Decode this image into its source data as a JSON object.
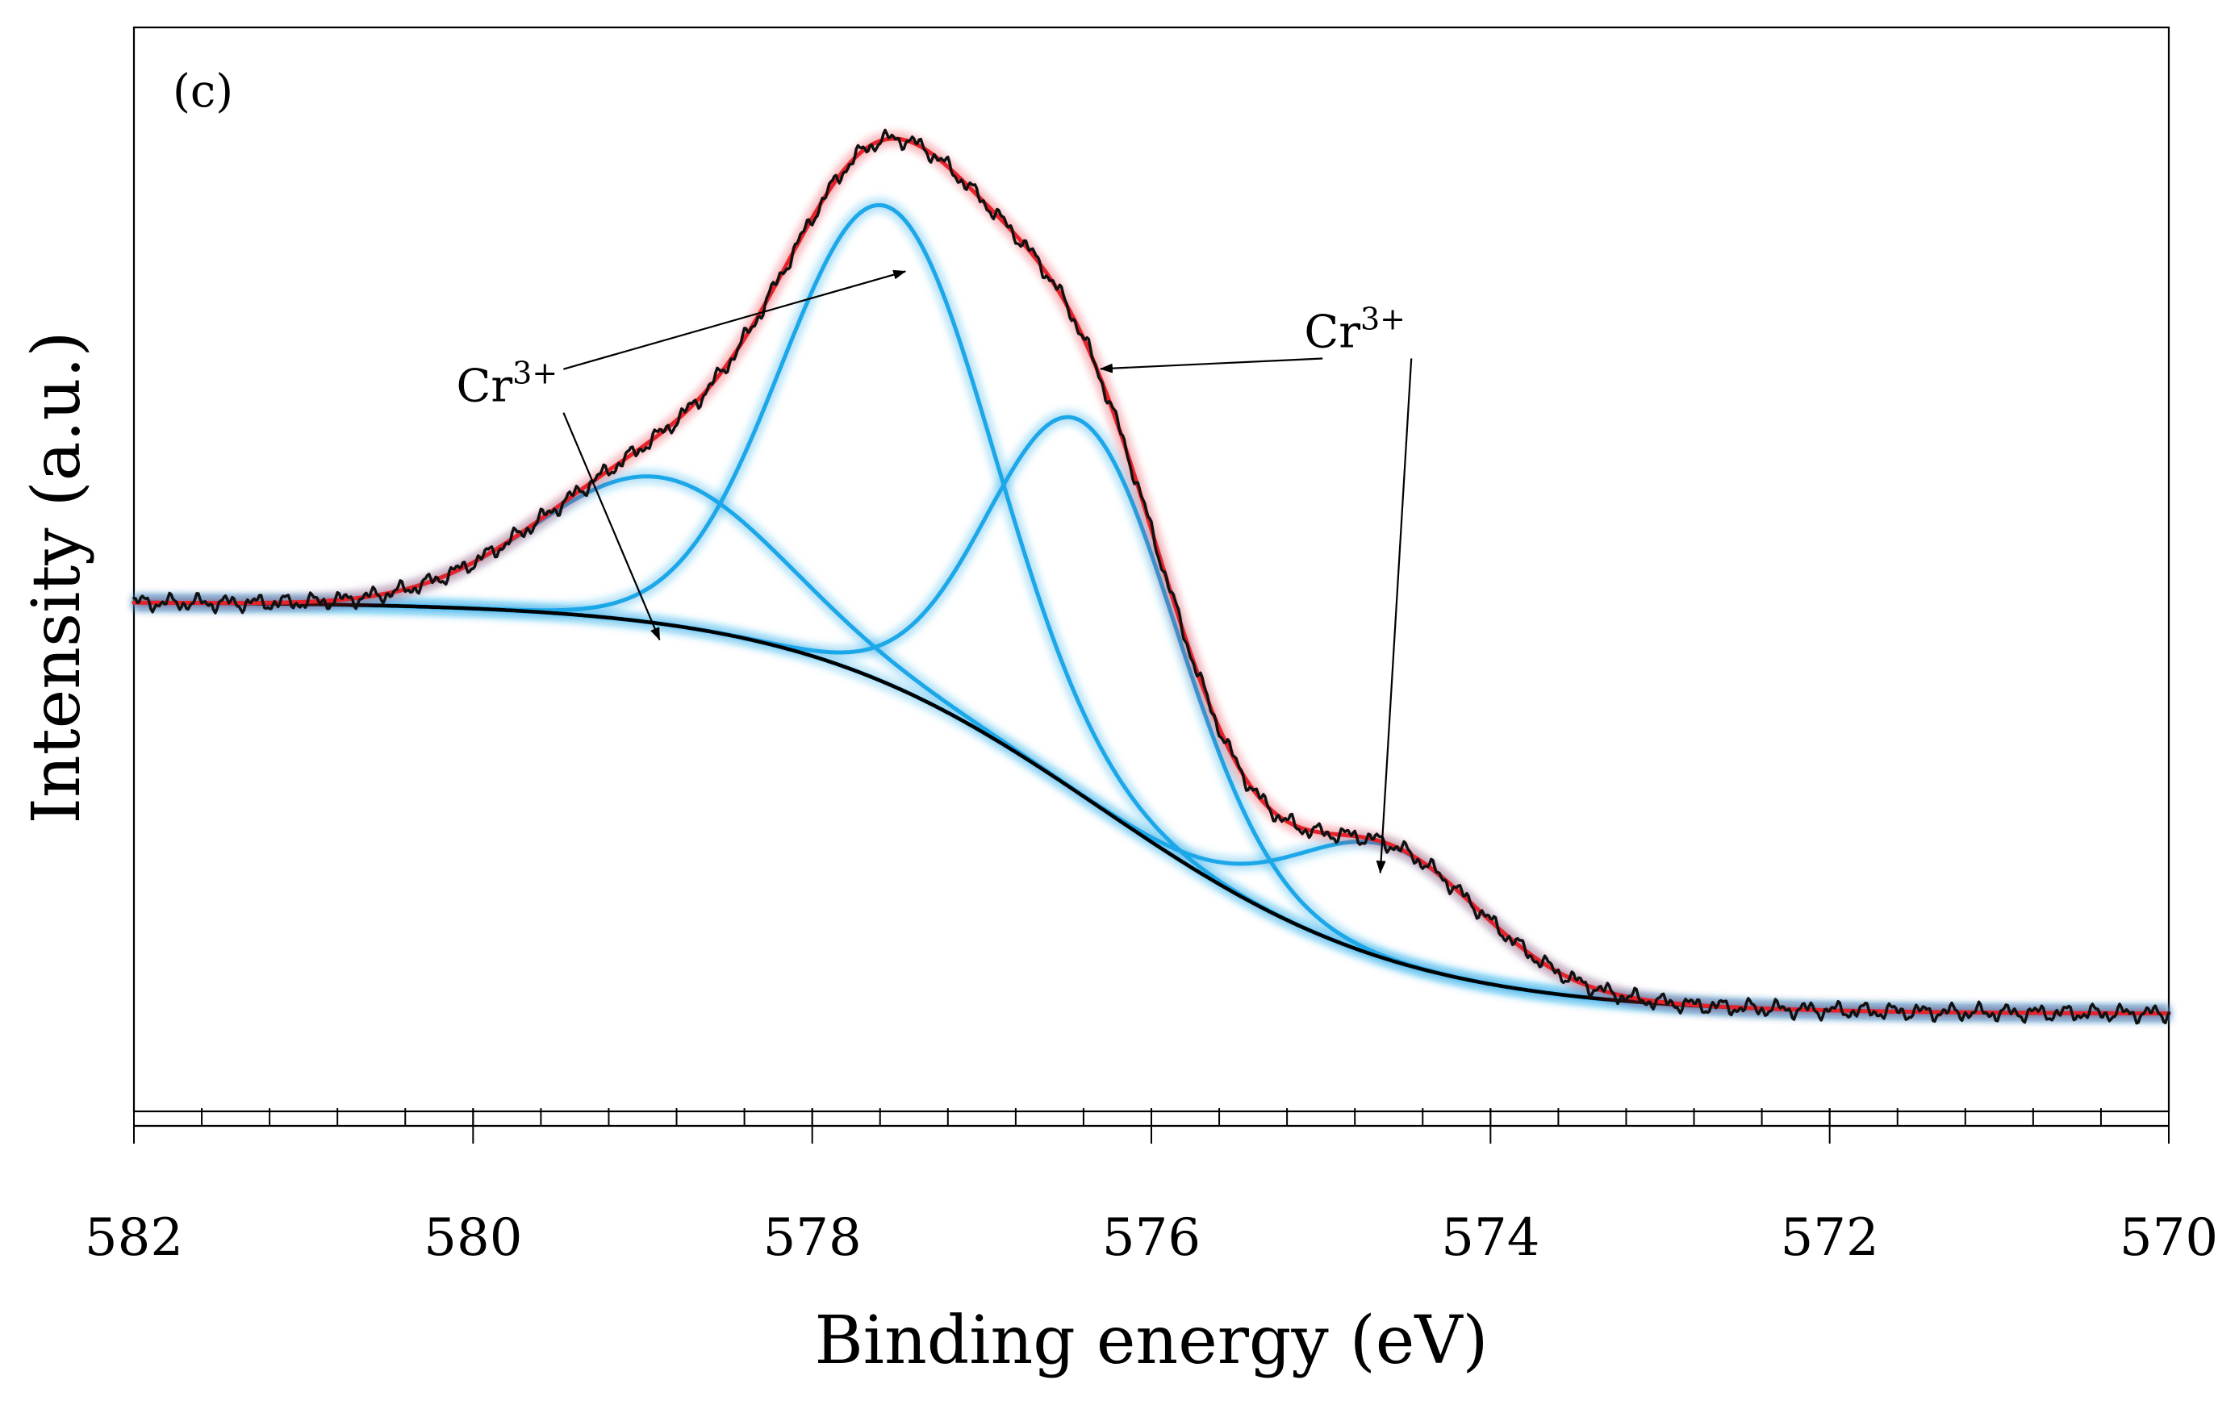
{
  "chart_data": {
    "type": "line",
    "panel_label": "(c)",
    "xlabel": "Binding energy (eV)",
    "ylabel": "Intensity (a.u.)",
    "xlim": [
      582,
      570
    ],
    "x_reversed": true,
    "ylim": [
      0,
      100
    ],
    "y_ticks_shown": false,
    "major_x_ticks": [
      582,
      580,
      578,
      576,
      574,
      572,
      570
    ],
    "minor_x_step": 0.4,
    "grid": false,
    "legend": "none",
    "colors": {
      "raw": "#111111",
      "envelope": "#e8222a",
      "component": "#1ba7e8",
      "background": "#000000"
    },
    "background_curve": {
      "type": "sigmoid",
      "high": 47.0,
      "low": 9.0,
      "center": 576.3,
      "width": 0.9
    },
    "components": [
      {
        "center": 578.9,
        "height": 13.5,
        "fwhm": 1.7
      },
      {
        "center": 577.55,
        "height": 44.0,
        "fwhm": 1.45
      },
      {
        "center": 576.4,
        "height": 34.5,
        "fwhm": 1.3
      },
      {
        "center": 574.6,
        "height": 10.5,
        "fwhm": 1.3
      }
    ],
    "annotations": [
      {
        "text": "Cr",
        "superscript": "3+",
        "at_x": 579.8,
        "at_y": 65.5,
        "targets": [
          {
            "x": 578.9,
            "y": 43.5
          },
          {
            "x": 577.45,
            "y": 77.5
          }
        ]
      },
      {
        "text": "Cr",
        "superscript": "3+",
        "at_x": 574.8,
        "at_y": 70.5,
        "targets": [
          {
            "x": 576.3,
            "y": 68.5
          },
          {
            "x": 574.65,
            "y": 22.0
          }
        ]
      }
    ],
    "raw_noise_amplitude": 0.9
  }
}
